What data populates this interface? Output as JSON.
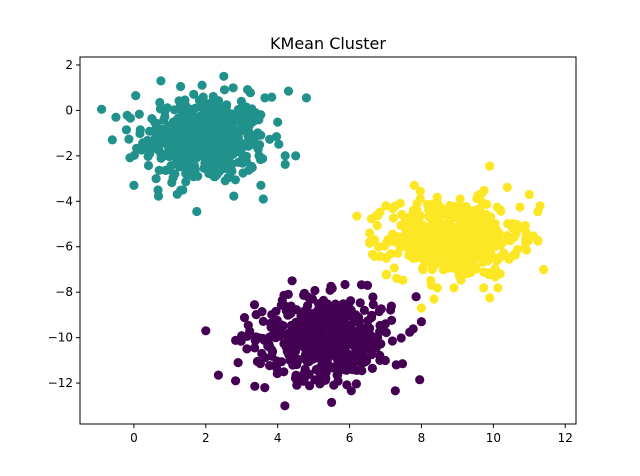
{
  "chart_data": {
    "type": "scatter",
    "title": "KMean Cluster",
    "xlabel": "",
    "ylabel": "",
    "xlim": [
      -1.5,
      12.3
    ],
    "ylim": [
      -13.8,
      2.35
    ],
    "xticks": [
      0,
      2,
      4,
      6,
      8,
      10,
      12
    ],
    "yticks": [
      2,
      0,
      -2,
      -4,
      -6,
      -8,
      -10,
      -12
    ],
    "grid": false,
    "legend": "none",
    "series": [
      {
        "color": "#21918c",
        "center": [
          2.0,
          -1.3
        ],
        "spread": [
          0.85,
          0.95
        ],
        "count": 500,
        "points": [
          [
            -0.9,
            0.05
          ],
          [
            -0.6,
            -1.3
          ],
          [
            -0.5,
            -0.3
          ],
          [
            0.05,
            0.65
          ],
          [
            0.75,
            1.3
          ],
          [
            1.3,
            1.05
          ],
          [
            2.5,
            1.5
          ],
          [
            1.75,
            -4.45
          ],
          [
            3.6,
            -3.9
          ],
          [
            4.8,
            0.55
          ],
          [
            4.3,
            0.85
          ],
          [
            4.5,
            -2.0
          ],
          [
            0.0,
            -3.3
          ]
        ]
      },
      {
        "color": "#fde725",
        "center": [
          8.9,
          -5.6
        ],
        "spread": [
          0.9,
          0.85
        ],
        "count": 500,
        "points": [
          [
            6.2,
            -4.65
          ],
          [
            9.9,
            -2.45
          ],
          [
            11.4,
            -7.0
          ],
          [
            11.3,
            -4.2
          ],
          [
            8.35,
            -8.3
          ],
          [
            9.9,
            -8.25
          ],
          [
            8.0,
            -8.7
          ],
          [
            6.7,
            -5.7
          ],
          [
            11.0,
            -3.7
          ],
          [
            7.8,
            -3.3
          ]
        ]
      },
      {
        "color": "#440154",
        "center": [
          5.3,
          -10.0
        ],
        "spread": [
          0.95,
          0.9
        ],
        "count": 500,
        "points": [
          [
            2.0,
            -9.7
          ],
          [
            2.35,
            -11.65
          ],
          [
            4.2,
            -13.0
          ],
          [
            5.5,
            -12.85
          ],
          [
            7.3,
            -11.2
          ],
          [
            7.95,
            -11.85
          ],
          [
            7.85,
            -8.2
          ],
          [
            4.4,
            -7.5
          ],
          [
            6.5,
            -7.7
          ],
          [
            8.0,
            -9.3
          ],
          [
            2.9,
            -11.1
          ]
        ]
      }
    ]
  }
}
